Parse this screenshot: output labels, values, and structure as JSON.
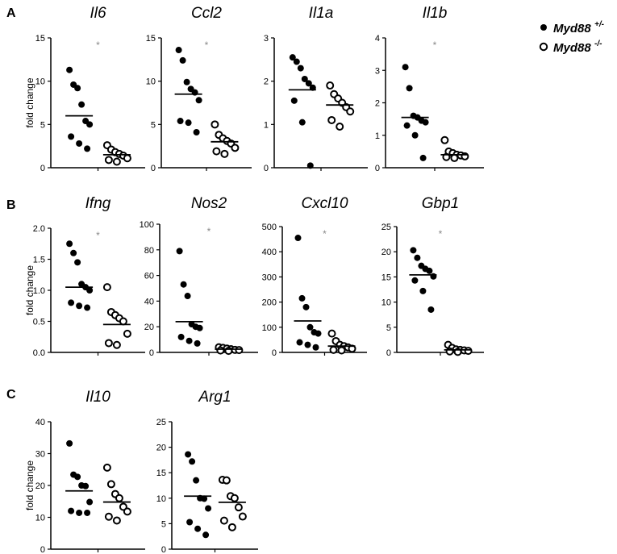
{
  "figure": {
    "panel_labels": [
      "A",
      "B",
      "C"
    ],
    "legend": [
      {
        "label": "Myd88",
        "superscript": "+/-",
        "marker": "filled"
      },
      {
        "label": "Myd88",
        "superscript": "-/-",
        "marker": "open"
      }
    ]
  },
  "chart_data": [
    {
      "type": "scatter",
      "panel": "A",
      "title": "Il6",
      "ylabel": "fold change",
      "ylim": [
        0,
        15
      ],
      "yticks": [
        0,
        5,
        10,
        15
      ],
      "significance": "*",
      "series": [
        {
          "name": "Myd88+/-",
          "values": [
            11.3,
            9.6,
            9.2,
            7.3,
            5.4,
            5.0,
            3.6,
            2.8,
            2.2
          ],
          "mean": 6.0
        },
        {
          "name": "Myd88-/-",
          "values": [
            2.6,
            2.1,
            1.8,
            1.6,
            1.4,
            1.1,
            0.9,
            0.7
          ],
          "mean": 1.5
        }
      ]
    },
    {
      "type": "scatter",
      "panel": "A",
      "title": "Ccl2",
      "ylabel": "",
      "ylim": [
        0,
        15
      ],
      "yticks": [
        0,
        5,
        10,
        15
      ],
      "significance": "*",
      "series": [
        {
          "name": "Myd88+/-",
          "values": [
            13.6,
            12.4,
            9.9,
            9.1,
            8.7,
            7.8,
            5.4,
            5.2,
            4.1
          ],
          "mean": 8.5
        },
        {
          "name": "Myd88-/-",
          "values": [
            5.0,
            3.8,
            3.4,
            3.1,
            2.8,
            2.3,
            1.9,
            1.6
          ],
          "mean": 3.0
        }
      ]
    },
    {
      "type": "scatter",
      "panel": "A",
      "title": "Il1a",
      "ylabel": "",
      "ylim": [
        0,
        3
      ],
      "yticks": [
        0,
        1,
        2,
        3
      ],
      "significance": "",
      "series": [
        {
          "name": "Myd88+/-",
          "values": [
            2.55,
            2.45,
            2.3,
            2.05,
            1.95,
            1.85,
            1.55,
            1.05,
            0.05
          ],
          "mean": 1.8
        },
        {
          "name": "Myd88-/-",
          "values": [
            1.9,
            1.7,
            1.6,
            1.5,
            1.4,
            1.3,
            1.1,
            0.95
          ],
          "mean": 1.45
        }
      ]
    },
    {
      "type": "scatter",
      "panel": "A",
      "title": "Il1b",
      "ylabel": "",
      "ylim": [
        0,
        4
      ],
      "yticks": [
        0,
        1,
        2,
        3,
        4
      ],
      "significance": "*",
      "series": [
        {
          "name": "Myd88+/-",
          "values": [
            3.1,
            2.45,
            1.6,
            1.55,
            1.45,
            1.4,
            1.3,
            1.0,
            0.3
          ],
          "mean": 1.55
        },
        {
          "name": "Myd88-/-",
          "values": [
            0.85,
            0.5,
            0.45,
            0.4,
            0.38,
            0.35,
            0.33,
            0.3
          ],
          "mean": 0.4
        }
      ]
    },
    {
      "type": "scatter",
      "panel": "B",
      "title": "Ifng",
      "ylabel": "fold change",
      "ylim": [
        0,
        2
      ],
      "yticks": [
        0.0,
        0.5,
        1.0,
        1.5,
        2.0
      ],
      "yticklabels": [
        "0.0",
        "0.5",
        "1.0",
        "1.5",
        "2.0"
      ],
      "significance": "*",
      "series": [
        {
          "name": "Myd88+/-",
          "values": [
            1.75,
            1.6,
            1.45,
            1.1,
            1.05,
            1.0,
            0.8,
            0.75,
            0.72
          ],
          "mean": 1.05
        },
        {
          "name": "Myd88-/-",
          "values": [
            1.05,
            0.65,
            0.6,
            0.55,
            0.5,
            0.3,
            0.15,
            0.12
          ],
          "mean": 0.45
        }
      ]
    },
    {
      "type": "scatter",
      "panel": "B",
      "title": "Nos2",
      "ylabel": "",
      "ylim": [
        0,
        100
      ],
      "yticks": [
        0,
        20,
        40,
        60,
        80,
        100
      ],
      "significance": "*",
      "series": [
        {
          "name": "Myd88+/-",
          "values": [
            79,
            53,
            44,
            22,
            20,
            19,
            12,
            9,
            7
          ],
          "mean": 24
        },
        {
          "name": "Myd88-/-",
          "values": [
            4,
            3.5,
            3,
            2.5,
            2,
            1.8,
            1.5,
            1.2
          ],
          "mean": 2.5
        }
      ]
    },
    {
      "type": "scatter",
      "panel": "B",
      "title": "Cxcl10",
      "ylabel": "",
      "ylim": [
        0,
        500
      ],
      "yticks": [
        0,
        100,
        200,
        300,
        400,
        500
      ],
      "significance": "*",
      "series": [
        {
          "name": "Myd88+/-",
          "values": [
            455,
            215,
            180,
            100,
            80,
            75,
            40,
            30,
            20
          ],
          "mean": 125
        },
        {
          "name": "Myd88-/-",
          "values": [
            75,
            45,
            30,
            25,
            20,
            15,
            10,
            8
          ],
          "mean": 25
        }
      ]
    },
    {
      "type": "scatter",
      "panel": "B",
      "title": "Gbp1",
      "ylabel": "",
      "ylim": [
        0,
        25
      ],
      "yticks": [
        0,
        5,
        10,
        15,
        20,
        25
      ],
      "significance": "*",
      "series": [
        {
          "name": "Myd88+/-",
          "values": [
            20.3,
            18.8,
            17.2,
            16.6,
            16.2,
            15.1,
            14.3,
            12.2,
            8.5
          ],
          "mean": 15.4
        },
        {
          "name": "Myd88-/-",
          "values": [
            1.5,
            0.9,
            0.6,
            0.5,
            0.4,
            0.3,
            0.2,
            0.1
          ],
          "mean": 0.5
        }
      ]
    },
    {
      "type": "scatter",
      "panel": "C",
      "title": "Il10",
      "ylabel": "fold change",
      "ylim": [
        0,
        40
      ],
      "yticks": [
        0,
        10,
        20,
        30,
        40
      ],
      "significance": "",
      "series": [
        {
          "name": "Myd88+/-",
          "values": [
            33.2,
            23.4,
            22.7,
            20.0,
            19.8,
            14.8,
            12.0,
            11.4,
            11.4
          ],
          "mean": 18.3
        },
        {
          "name": "Myd88-/-",
          "values": [
            25.6,
            20.4,
            17.3,
            16.0,
            13.3,
            11.8,
            10.2,
            9.0
          ],
          "mean": 14.8
        }
      ]
    },
    {
      "type": "scatter",
      "panel": "C",
      "title": "Arg1",
      "ylabel": "",
      "ylim": [
        0,
        25
      ],
      "yticks": [
        0,
        5,
        10,
        15,
        20,
        25
      ],
      "significance": "",
      "series": [
        {
          "name": "Myd88+/-",
          "values": [
            18.6,
            17.2,
            13.5,
            10.0,
            9.9,
            8.0,
            5.3,
            4.0,
            2.8
          ],
          "mean": 10.4
        },
        {
          "name": "Myd88-/-",
          "values": [
            13.6,
            13.5,
            10.4,
            10.0,
            8.2,
            6.4,
            5.6,
            4.3
          ],
          "mean": 9.2
        }
      ]
    }
  ]
}
